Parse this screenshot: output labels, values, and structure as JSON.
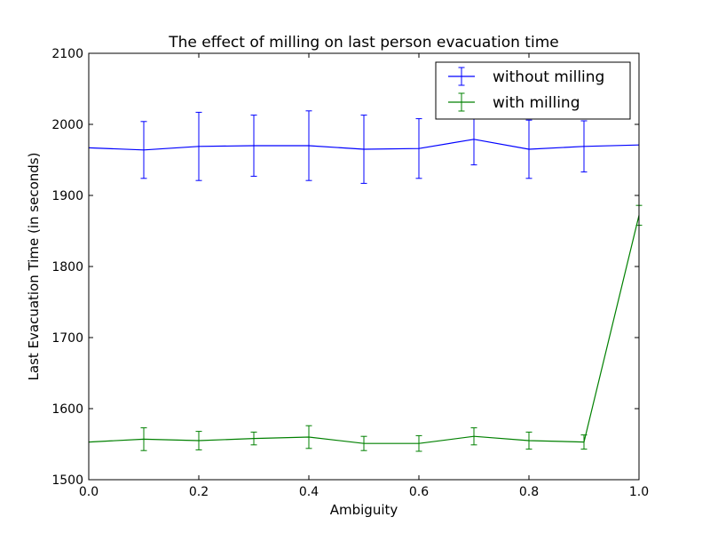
{
  "chart_data": {
    "type": "line",
    "title": "The effect of milling on last person evacuation time",
    "xlabel": "Ambiguity",
    "ylabel": "Last Evacuation Time (in seconds)",
    "xlim": [
      0.0,
      1.0
    ],
    "ylim": [
      1500,
      2100
    ],
    "x_ticks": [
      "0.0",
      "0.2",
      "0.4",
      "0.6",
      "0.8",
      "1.0"
    ],
    "y_ticks": [
      "1500",
      "1600",
      "1700",
      "1800",
      "1900",
      "2000",
      "2100"
    ],
    "grid": false,
    "legend_position": "top-right",
    "x": [
      0.0,
      0.1,
      0.2,
      0.3,
      0.4,
      0.5,
      0.6,
      0.7,
      0.8,
      0.9,
      1.0
    ],
    "series": [
      {
        "name": "without milling",
        "color": "#0000ff",
        "values": [
          1967,
          1964,
          1969,
          1970,
          1970,
          1965,
          1966,
          1979,
          1965,
          1969,
          1971
        ],
        "errors": [
          0,
          40,
          48,
          43,
          49,
          48,
          42,
          36,
          41,
          36,
          0
        ]
      },
      {
        "name": "with milling",
        "color": "#008000",
        "values": [
          1553,
          1557,
          1555,
          1558,
          1560,
          1551,
          1551,
          1561,
          1555,
          1553,
          1872
        ],
        "errors": [
          0,
          16,
          13,
          9,
          16,
          10,
          11,
          12,
          12,
          10,
          14
        ]
      }
    ]
  }
}
